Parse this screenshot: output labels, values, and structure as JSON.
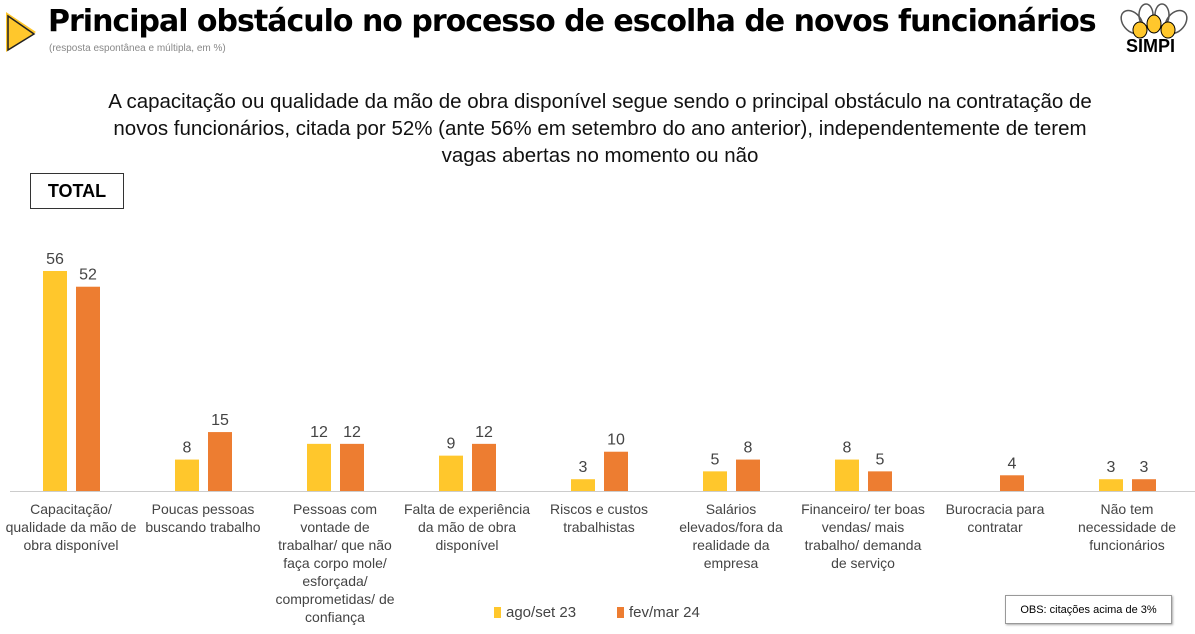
{
  "header": {
    "title": "Principal obstáculo no processo de escolha de novos funcionários",
    "subtitle": "(resposta espontânea e múltipla, em %)",
    "logo_text": "SIMPI"
  },
  "headline": "A capacitação ou qualidade da mão de obra disponível segue sendo o principal obstáculo na contratação de novos funcionários, citada por 52% (ante 56% em setembro do ano anterior), independentemente de terem vagas abertas no momento ou não",
  "filter_label": "TOTAL",
  "note": "OBS: citações acima de 3%",
  "colors": {
    "ago_set_23": "#FFC72C",
    "fev_mar_24": "#ED7D31"
  },
  "chart_data": {
    "type": "bar",
    "categories": [
      "Capacitação/ qualidade da mão de obra disponível",
      "Poucas pessoas buscando trabalho",
      "Pessoas com vontade de trabalhar/ que não faça corpo mole/ esforçada/ comprometidas/ de confiança",
      "Falta de experiência da mão de obra disponível",
      "Riscos e custos trabalhistas",
      "Salários elevados/fora da realidade da empresa",
      "Financeiro/ ter boas vendas/ mais trabalho/ demanda de serviço",
      "Burocracia para contratar",
      "Não tem necessidade de funcionários"
    ],
    "series": [
      {
        "name": "ago/set 23",
        "values": [
          56,
          8,
          12,
          9,
          3,
          5,
          8,
          null,
          3
        ]
      },
      {
        "name": "fev/mar 24",
        "values": [
          52,
          15,
          12,
          12,
          10,
          8,
          5,
          4,
          3
        ]
      }
    ],
    "ylim": [
      0,
      56
    ],
    "legend": "bottom-center",
    "grid": false
  }
}
